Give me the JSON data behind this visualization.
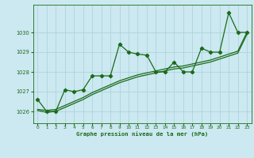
{
  "x": [
    0,
    1,
    2,
    3,
    4,
    5,
    6,
    7,
    8,
    9,
    10,
    11,
    12,
    13,
    14,
    15,
    16,
    17,
    18,
    19,
    20,
    21,
    22,
    23
  ],
  "y_main": [
    1026.6,
    1026.0,
    1026.0,
    1027.1,
    1027.0,
    1027.1,
    1027.8,
    1027.8,
    1027.8,
    1029.4,
    1029.0,
    1028.9,
    1028.85,
    1028.0,
    1028.0,
    1028.5,
    1028.0,
    1028.0,
    1029.2,
    1029.0,
    1029.0,
    1031.0,
    1030.0,
    1030.0
  ],
  "y_smooth1": [
    1026.1,
    1026.05,
    1026.1,
    1026.3,
    1026.5,
    1026.7,
    1026.95,
    1027.15,
    1027.35,
    1027.55,
    1027.7,
    1027.85,
    1027.95,
    1028.05,
    1028.15,
    1028.25,
    1028.3,
    1028.4,
    1028.5,
    1028.6,
    1028.75,
    1028.9,
    1029.05,
    1030.0
  ],
  "y_smooth2": [
    1026.05,
    1025.95,
    1026.0,
    1026.2,
    1026.4,
    1026.6,
    1026.85,
    1027.05,
    1027.25,
    1027.45,
    1027.6,
    1027.75,
    1027.85,
    1027.95,
    1028.05,
    1028.15,
    1028.2,
    1028.3,
    1028.4,
    1028.5,
    1028.65,
    1028.8,
    1028.95,
    1029.9
  ],
  "line_color": "#1a6b1a",
  "bg_color": "#cce8f0",
  "grid_color": "#a8d0da",
  "xlabel": "Graphe pression niveau de la mer (hPa)",
  "ylim": [
    1025.4,
    1031.4
  ],
  "xlim": [
    -0.5,
    23.5
  ],
  "yticks": [
    1026,
    1027,
    1028,
    1029,
    1030
  ],
  "xticks": [
    0,
    1,
    2,
    3,
    4,
    5,
    6,
    7,
    8,
    9,
    10,
    11,
    12,
    13,
    14,
    15,
    16,
    17,
    18,
    19,
    20,
    21,
    22,
    23
  ]
}
